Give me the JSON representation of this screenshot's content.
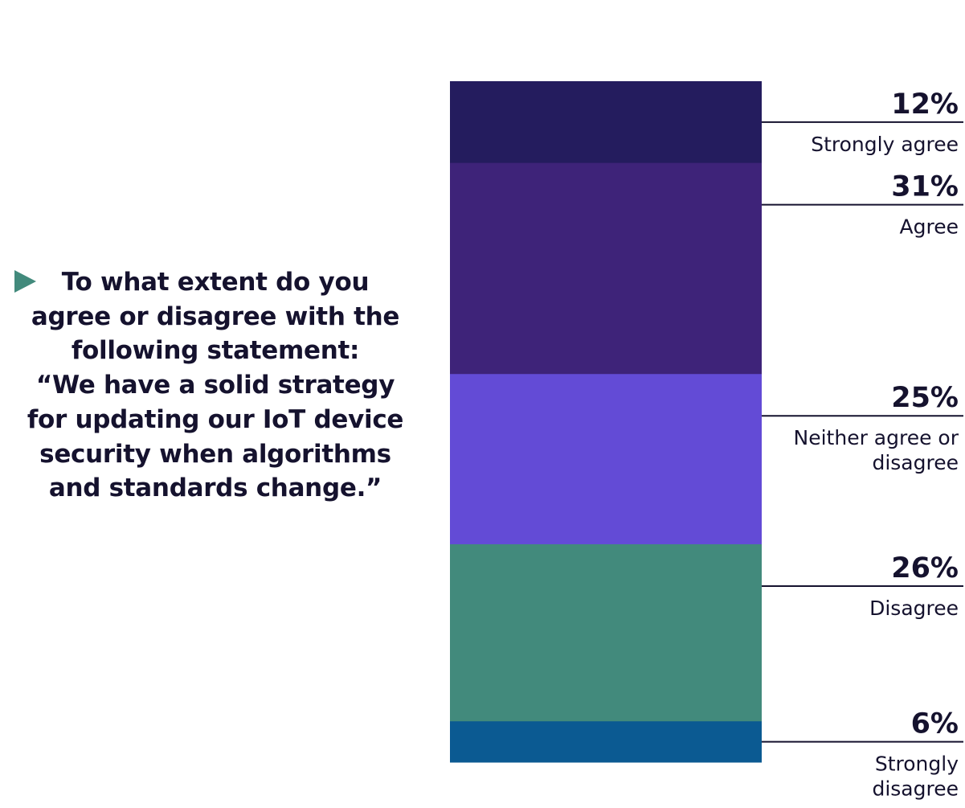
{
  "question": {
    "text": "To what extent do you\nagree or disagree with the\nfollowing statement:\n“We have a solid strategy\nfor updating our IoT device\nsecurity when algorithms\nand standards change.”",
    "arrow_color": "#428a7c"
  },
  "chart_data": {
    "type": "bar",
    "subtype": "stacked-single-column",
    "unit": "%",
    "categories": [
      "Strongly agree",
      "Agree",
      "Neither agree or disagree",
      "Disagree",
      "Strongly disagree"
    ],
    "category_label_lines": [
      [
        "Strongly agree"
      ],
      [
        "Agree"
      ],
      [
        "Neither agree or",
        "disagree"
      ],
      [
        "Disagree"
      ],
      [
        "Strongly",
        "disagree"
      ]
    ],
    "values": [
      12,
      31,
      25,
      26,
      6
    ],
    "value_labels": [
      "12%",
      "31%",
      "25%",
      "26%",
      "6%"
    ],
    "colors": [
      "#241c5e",
      "#3e2379",
      "#634bd6",
      "#428a7c",
      "#0b5a92"
    ],
    "legend": "right",
    "grid": false
  }
}
